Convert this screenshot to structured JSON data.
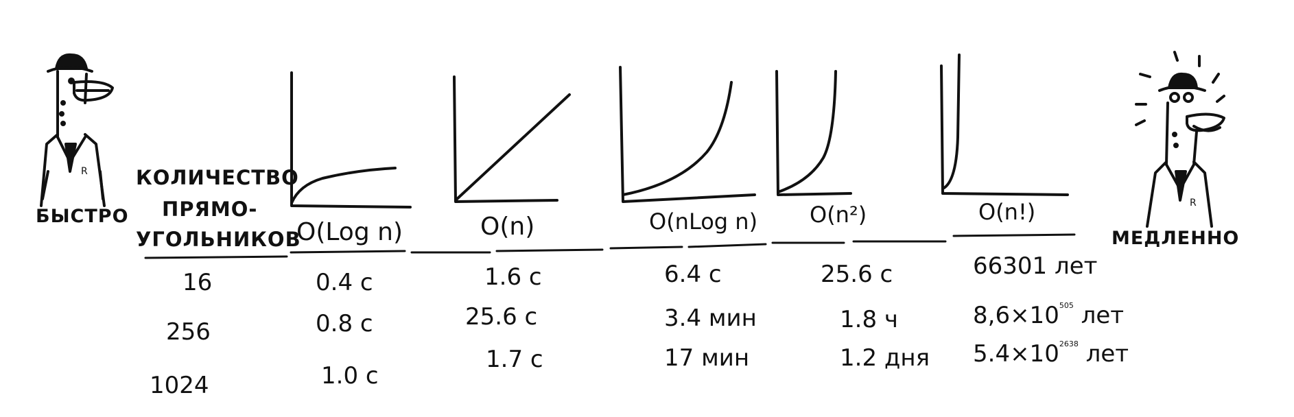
{
  "left_character": {
    "label": "БЫСТРО"
  },
  "right_character": {
    "label": "МЕДЛЕННО"
  },
  "row_header": {
    "line1": "КОЛИЧЕСТВО",
    "line2": "ПРЯМО-",
    "line3": "УГОЛЬНИКОВ"
  },
  "complexities": [
    {
      "label": "O(Log n)",
      "curve": "log"
    },
    {
      "label": "O(n)",
      "curve": "linear"
    },
    {
      "label": "O(nLog n)",
      "curve": "nlogn"
    },
    {
      "label": "O(n²)",
      "curve": "quadratic"
    },
    {
      "label": "O(n!)",
      "curve": "factorial"
    }
  ],
  "rows": [
    {
      "n": "16",
      "values": [
        "0.4 с",
        "1.6 с",
        "6.4 с",
        "25.6 с",
        "66301 лет"
      ]
    },
    {
      "n": "256",
      "values": [
        "0.8 с",
        "25.6 с",
        "3.4 мин",
        "1.8 ч",
        "8,6×10"
      ]
    },
    {
      "n": "1024",
      "values": [
        "1.0 с",
        "1.7 с",
        "17 мин",
        "1.2 дня",
        "5.4×10"
      ]
    }
  ],
  "exponents": {
    "row2": "505",
    "row3": "2638"
  },
  "exponent_suffix": " лет",
  "colors": {
    "ink": "#111111",
    "background": "#ffffff"
  }
}
